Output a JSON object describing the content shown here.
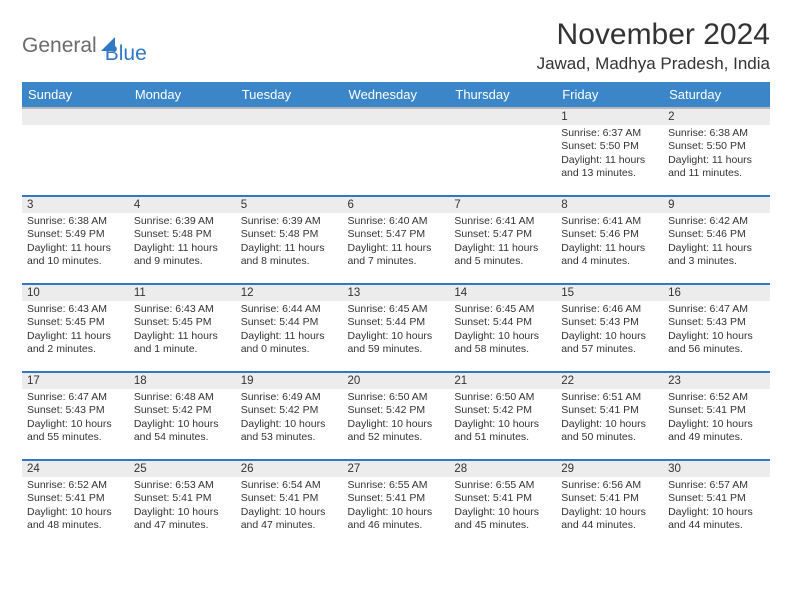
{
  "logo": {
    "part1": "General",
    "part2": "Blue"
  },
  "title": "November 2024",
  "location": "Jawad, Madhya Pradesh, India",
  "colors": {
    "header_bg": "#3b86c8",
    "row_border": "#2f78c3",
    "daynum_bg": "#ececec",
    "header_underline": "#b9b9b9",
    "text": "#333333",
    "logo_gray": "#6b6b6b",
    "logo_blue": "#2f78c3",
    "page_bg": "#ffffff"
  },
  "typography": {
    "title_fontsize": 30,
    "location_fontsize": 17,
    "header_fontsize": 13,
    "daynum_fontsize": 11.5,
    "body_fontsize": 10.5
  },
  "day_headers": [
    "Sunday",
    "Monday",
    "Tuesday",
    "Wednesday",
    "Thursday",
    "Friday",
    "Saturday"
  ],
  "weeks": [
    [
      null,
      null,
      null,
      null,
      null,
      {
        "day": "1",
        "sunrise": "Sunrise: 6:37 AM",
        "sunset": "Sunset: 5:50 PM",
        "daylight": "Daylight: 11 hours and 13 minutes."
      },
      {
        "day": "2",
        "sunrise": "Sunrise: 6:38 AM",
        "sunset": "Sunset: 5:50 PM",
        "daylight": "Daylight: 11 hours and 11 minutes."
      }
    ],
    [
      {
        "day": "3",
        "sunrise": "Sunrise: 6:38 AM",
        "sunset": "Sunset: 5:49 PM",
        "daylight": "Daylight: 11 hours and 10 minutes."
      },
      {
        "day": "4",
        "sunrise": "Sunrise: 6:39 AM",
        "sunset": "Sunset: 5:48 PM",
        "daylight": "Daylight: 11 hours and 9 minutes."
      },
      {
        "day": "5",
        "sunrise": "Sunrise: 6:39 AM",
        "sunset": "Sunset: 5:48 PM",
        "daylight": "Daylight: 11 hours and 8 minutes."
      },
      {
        "day": "6",
        "sunrise": "Sunrise: 6:40 AM",
        "sunset": "Sunset: 5:47 PM",
        "daylight": "Daylight: 11 hours and 7 minutes."
      },
      {
        "day": "7",
        "sunrise": "Sunrise: 6:41 AM",
        "sunset": "Sunset: 5:47 PM",
        "daylight": "Daylight: 11 hours and 5 minutes."
      },
      {
        "day": "8",
        "sunrise": "Sunrise: 6:41 AM",
        "sunset": "Sunset: 5:46 PM",
        "daylight": "Daylight: 11 hours and 4 minutes."
      },
      {
        "day": "9",
        "sunrise": "Sunrise: 6:42 AM",
        "sunset": "Sunset: 5:46 PM",
        "daylight": "Daylight: 11 hours and 3 minutes."
      }
    ],
    [
      {
        "day": "10",
        "sunrise": "Sunrise: 6:43 AM",
        "sunset": "Sunset: 5:45 PM",
        "daylight": "Daylight: 11 hours and 2 minutes."
      },
      {
        "day": "11",
        "sunrise": "Sunrise: 6:43 AM",
        "sunset": "Sunset: 5:45 PM",
        "daylight": "Daylight: 11 hours and 1 minute."
      },
      {
        "day": "12",
        "sunrise": "Sunrise: 6:44 AM",
        "sunset": "Sunset: 5:44 PM",
        "daylight": "Daylight: 11 hours and 0 minutes."
      },
      {
        "day": "13",
        "sunrise": "Sunrise: 6:45 AM",
        "sunset": "Sunset: 5:44 PM",
        "daylight": "Daylight: 10 hours and 59 minutes."
      },
      {
        "day": "14",
        "sunrise": "Sunrise: 6:45 AM",
        "sunset": "Sunset: 5:44 PM",
        "daylight": "Daylight: 10 hours and 58 minutes."
      },
      {
        "day": "15",
        "sunrise": "Sunrise: 6:46 AM",
        "sunset": "Sunset: 5:43 PM",
        "daylight": "Daylight: 10 hours and 57 minutes."
      },
      {
        "day": "16",
        "sunrise": "Sunrise: 6:47 AM",
        "sunset": "Sunset: 5:43 PM",
        "daylight": "Daylight: 10 hours and 56 minutes."
      }
    ],
    [
      {
        "day": "17",
        "sunrise": "Sunrise: 6:47 AM",
        "sunset": "Sunset: 5:43 PM",
        "daylight": "Daylight: 10 hours and 55 minutes."
      },
      {
        "day": "18",
        "sunrise": "Sunrise: 6:48 AM",
        "sunset": "Sunset: 5:42 PM",
        "daylight": "Daylight: 10 hours and 54 minutes."
      },
      {
        "day": "19",
        "sunrise": "Sunrise: 6:49 AM",
        "sunset": "Sunset: 5:42 PM",
        "daylight": "Daylight: 10 hours and 53 minutes."
      },
      {
        "day": "20",
        "sunrise": "Sunrise: 6:50 AM",
        "sunset": "Sunset: 5:42 PM",
        "daylight": "Daylight: 10 hours and 52 minutes."
      },
      {
        "day": "21",
        "sunrise": "Sunrise: 6:50 AM",
        "sunset": "Sunset: 5:42 PM",
        "daylight": "Daylight: 10 hours and 51 minutes."
      },
      {
        "day": "22",
        "sunrise": "Sunrise: 6:51 AM",
        "sunset": "Sunset: 5:41 PM",
        "daylight": "Daylight: 10 hours and 50 minutes."
      },
      {
        "day": "23",
        "sunrise": "Sunrise: 6:52 AM",
        "sunset": "Sunset: 5:41 PM",
        "daylight": "Daylight: 10 hours and 49 minutes."
      }
    ],
    [
      {
        "day": "24",
        "sunrise": "Sunrise: 6:52 AM",
        "sunset": "Sunset: 5:41 PM",
        "daylight": "Daylight: 10 hours and 48 minutes."
      },
      {
        "day": "25",
        "sunrise": "Sunrise: 6:53 AM",
        "sunset": "Sunset: 5:41 PM",
        "daylight": "Daylight: 10 hours and 47 minutes."
      },
      {
        "day": "26",
        "sunrise": "Sunrise: 6:54 AM",
        "sunset": "Sunset: 5:41 PM",
        "daylight": "Daylight: 10 hours and 47 minutes."
      },
      {
        "day": "27",
        "sunrise": "Sunrise: 6:55 AM",
        "sunset": "Sunset: 5:41 PM",
        "daylight": "Daylight: 10 hours and 46 minutes."
      },
      {
        "day": "28",
        "sunrise": "Sunrise: 6:55 AM",
        "sunset": "Sunset: 5:41 PM",
        "daylight": "Daylight: 10 hours and 45 minutes."
      },
      {
        "day": "29",
        "sunrise": "Sunrise: 6:56 AM",
        "sunset": "Sunset: 5:41 PM",
        "daylight": "Daylight: 10 hours and 44 minutes."
      },
      {
        "day": "30",
        "sunrise": "Sunrise: 6:57 AM",
        "sunset": "Sunset: 5:41 PM",
        "daylight": "Daylight: 10 hours and 44 minutes."
      }
    ]
  ]
}
